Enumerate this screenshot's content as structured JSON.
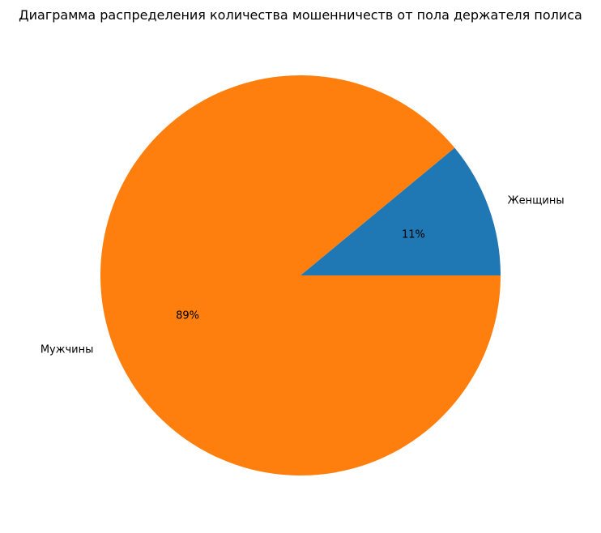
{
  "chart_data": {
    "type": "pie",
    "title": "Диаграмма распределения количества мошенничеств от пола держателя полиса",
    "categories": [
      "Женщины",
      "Мужчины"
    ],
    "values": [
      11,
      89
    ],
    "labels": [
      "11%",
      "89%"
    ],
    "colors": [
      "#1f77b4",
      "#ff7f0e"
    ],
    "start_angle_deg": 0,
    "direction": "counterclockwise",
    "legend": "none"
  }
}
